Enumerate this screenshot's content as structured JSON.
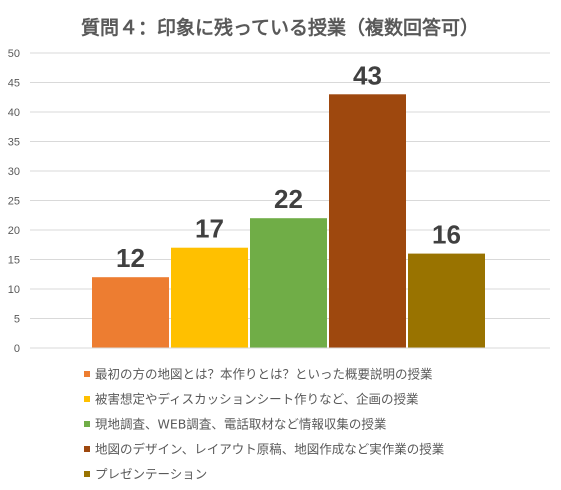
{
  "chart_data": {
    "type": "bar",
    "title": "質問４：印象に残っている授業（複数回答可）",
    "xlabel": "",
    "ylabel": "",
    "ylim": [
      0,
      50
    ],
    "yticks": [
      0,
      5,
      10,
      15,
      20,
      25,
      30,
      35,
      40,
      45,
      50
    ],
    "grid": true,
    "legend_position": "bottom",
    "categories": [
      "最初の方の地図とは？本作りとは？といった概要説明の授業",
      "被害想定やディスカッションシート作りなど、企画の授業",
      "現地調査、WEB調査、電話取材など情報収集の授業",
      "地図のデザイン、レイアウト原稿、地図作成など実作業の授業",
      "プレゼンテーション"
    ],
    "values": [
      12,
      17,
      22,
      43,
      16
    ],
    "colors": [
      "#ED7D31",
      "#FFC000",
      "#70AD47",
      "#9E480E",
      "#997300"
    ]
  }
}
